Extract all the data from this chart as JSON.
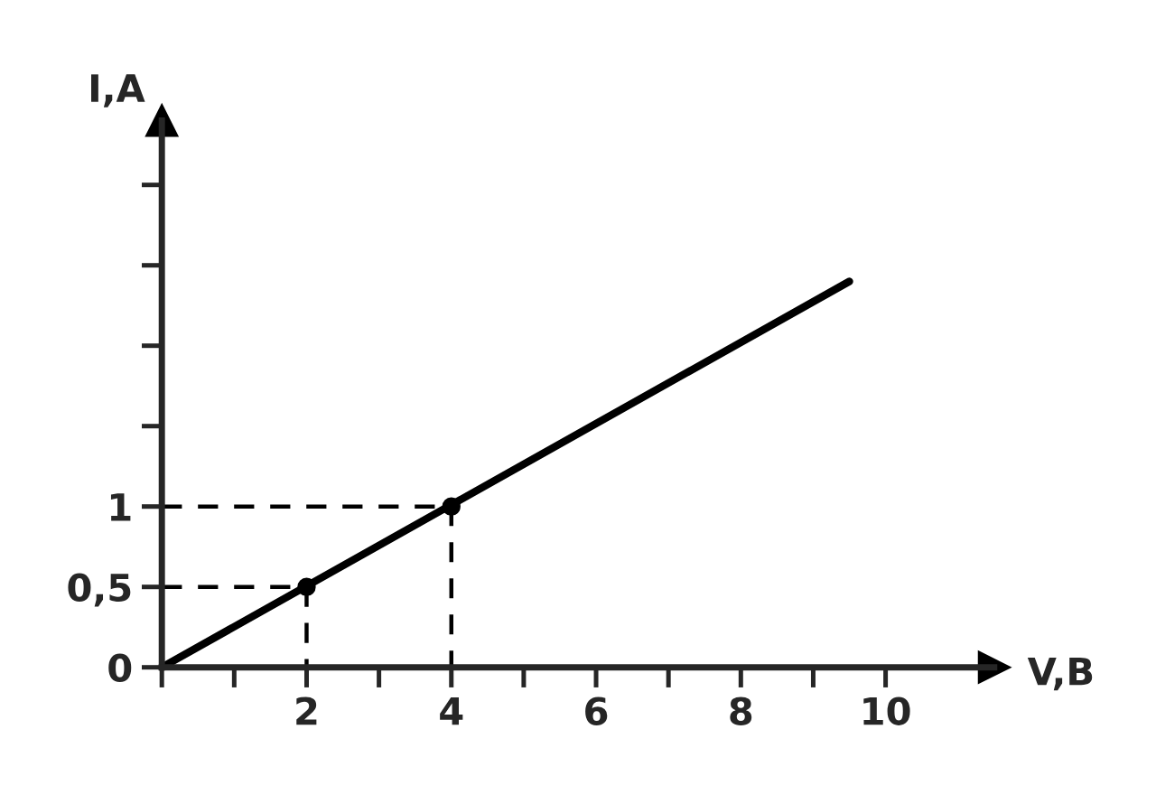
{
  "chart_data": {
    "type": "line",
    "xlabel": "V,B",
    "ylabel": "I,A",
    "marker": "none",
    "xlim": [
      0,
      11.5
    ],
    "ylim": [
      0,
      3.4
    ],
    "xticks": [
      {
        "value": 0,
        "label": null
      },
      {
        "value": 1,
        "label": null
      },
      2,
      {
        "value": 3,
        "label": null
      },
      4,
      {
        "value": 5,
        "label": null
      },
      6,
      {
        "value": 7,
        "label": null
      },
      8,
      {
        "value": 9,
        "label": null
      },
      10
    ],
    "yticks": [
      0,
      {
        "value": 0.5,
        "label": "0,5"
      },
      1,
      {
        "value": 1.5,
        "label": null
      },
      {
        "value": 2,
        "label": null
      },
      {
        "value": 2.5,
        "label": null
      },
      {
        "value": 3,
        "label": null
      }
    ],
    "grid": false,
    "series": [
      {
        "color": "#000000",
        "x": [
          0,
          9.5
        ],
        "values": [
          0,
          2.4
        ],
        "line_style": "solid"
      },
      {
        "color": "#000000",
        "x": [
          0,
          2,
          2
        ],
        "values": [
          0.5,
          0.5,
          0
        ],
        "line_style": "dashed"
      },
      {
        "color": "#000000",
        "x": [
          0,
          4,
          4
        ],
        "values": [
          1,
          1,
          0
        ],
        "line_style": "dashed"
      },
      {
        "type": "scatter",
        "color": "#000000",
        "x": [
          2,
          4
        ],
        "values": [
          0.5,
          1
        ],
        "marker": "circle"
      }
    ]
  }
}
